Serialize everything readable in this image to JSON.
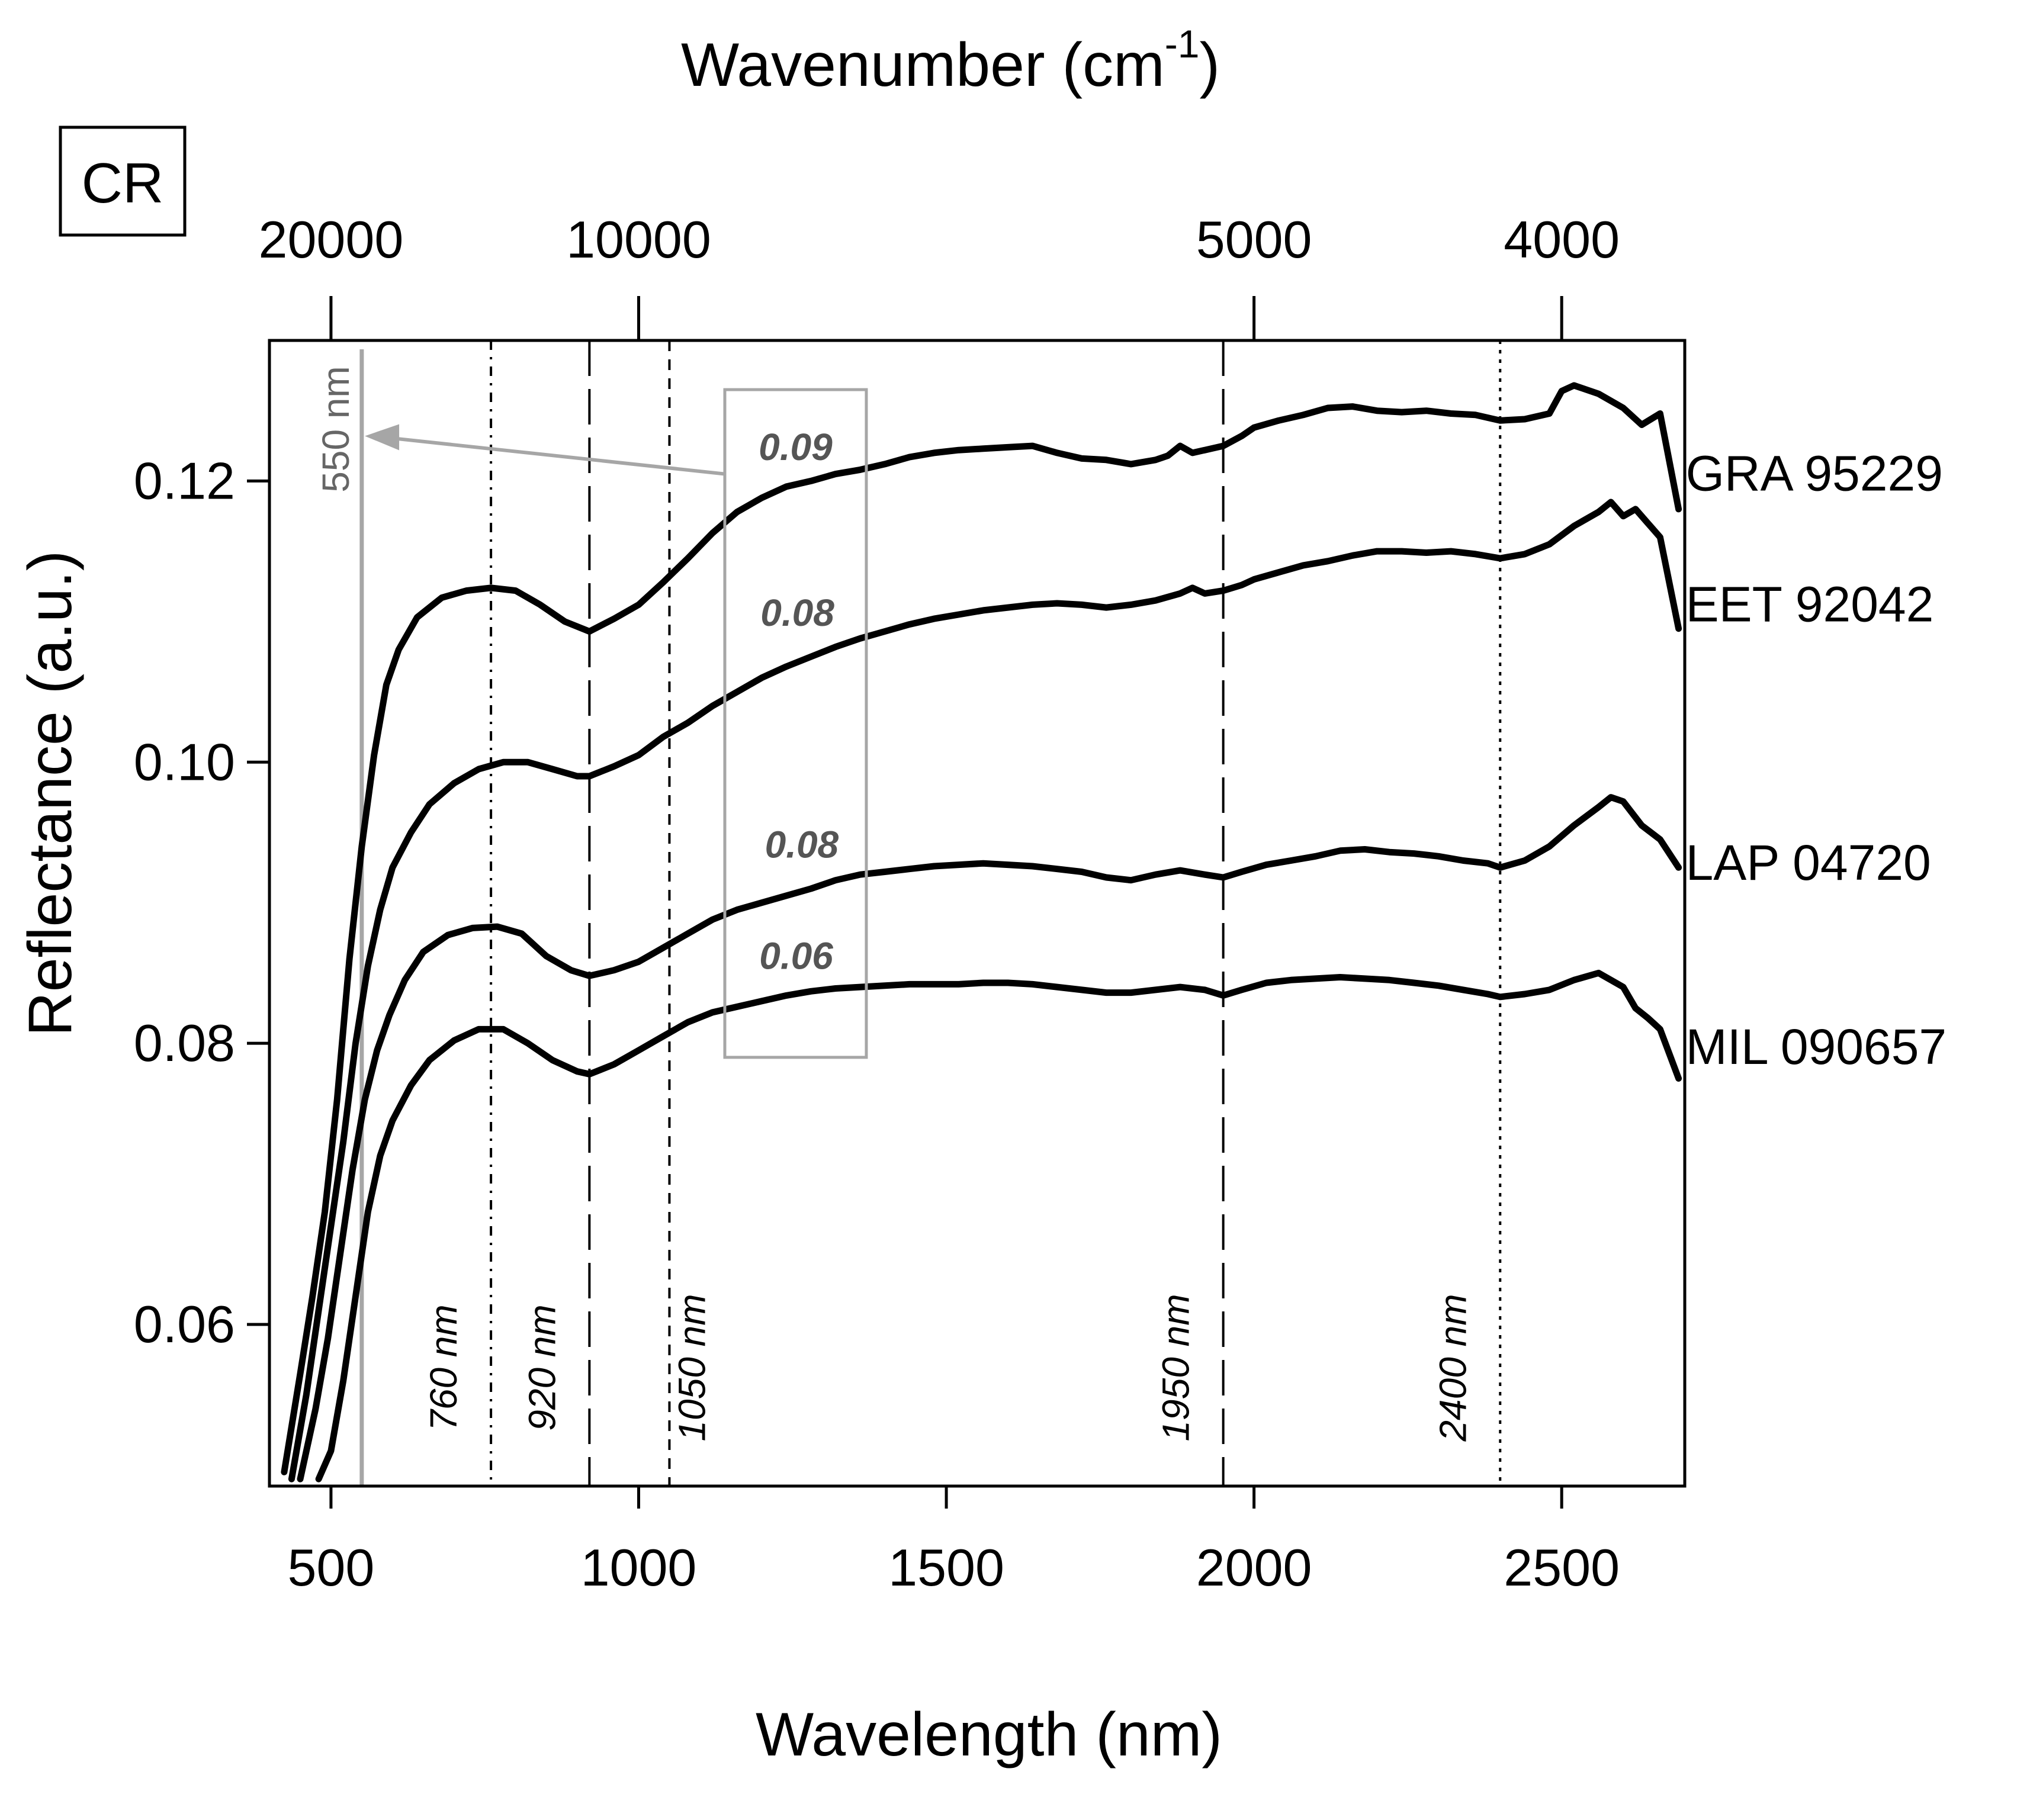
{
  "chart_data": {
    "type": "line",
    "panel_label": "CR",
    "xlabel": "Wavelength (nm)",
    "ylabel": "Reflectance (a.u.)",
    "top_axis_label": {
      "base": "Wavenumber (cm",
      "superscript": "-1",
      "close": ")"
    },
    "xlim": [
      400,
      2700
    ],
    "ylim": [
      0.0485,
      0.13
    ],
    "xticks": [
      500,
      1000,
      1500,
      2000,
      2500
    ],
    "xtick_labels": [
      "500",
      "1000",
      "1500",
      "2000",
      "2500"
    ],
    "yticks": [
      0.06,
      0.08,
      0.1,
      0.12
    ],
    "ytick_labels": [
      "0.06",
      "0.08",
      "0.10",
      "0.12"
    ],
    "top_ticks": [
      {
        "wavenumber": 20000,
        "label": "20000"
      },
      {
        "wavenumber": 10000,
        "label": "10000"
      },
      {
        "wavenumber": 5000,
        "label": "5000"
      },
      {
        "wavenumber": 4000,
        "label": "4000"
      }
    ],
    "marker_line": {
      "x": 550,
      "label": "550 nm",
      "color": "#a6a6a6"
    },
    "vlines": [
      {
        "x": 760,
        "label": "760 nm",
        "style": "dashdot"
      },
      {
        "x": 920,
        "label": "920 nm",
        "style": "longdash"
      },
      {
        "x": 1050,
        "label": "1050 nm",
        "style": "dashed"
      },
      {
        "x": 1950,
        "label": "1950 nm",
        "style": "longdash"
      },
      {
        "x": 2400,
        "label": "2400 nm",
        "style": "dotted"
      }
    ],
    "highlight_box": {
      "x_range": [
        1140,
        1370
      ],
      "y_range": [
        0.079,
        0.1265
      ],
      "color": "#a6a6a6"
    },
    "arrow": {
      "from": [
        1140,
        0.1205
      ],
      "to": [
        555,
        0.1232
      ]
    },
    "depth_labels": [
      {
        "series": "GRA 95229",
        "text": "0.09",
        "x": 1255,
        "y": 0.1215
      },
      {
        "series": "EET 92042",
        "text": "0.08",
        "x": 1258,
        "y": 0.1097
      },
      {
        "series": "LAP 04720",
        "text": "0.08",
        "x": 1265,
        "y": 0.0932
      },
      {
        "series": "MIL 090657",
        "text": "0.06",
        "x": 1256,
        "y": 0.0853
      }
    ],
    "series": [
      {
        "name": "GRA 95229",
        "x": [
          424,
          450,
          470,
          490,
          510,
          530,
          550,
          570,
          590,
          610,
          640,
          680,
          720,
          760,
          800,
          840,
          880,
          920,
          960,
          1000,
          1040,
          1080,
          1120,
          1160,
          1200,
          1240,
          1280,
          1320,
          1360,
          1400,
          1440,
          1480,
          1520,
          1560,
          1600,
          1640,
          1680,
          1720,
          1760,
          1800,
          1840,
          1860,
          1880,
          1900,
          1920,
          1950,
          1980,
          2000,
          2040,
          2080,
          2120,
          2160,
          2200,
          2240,
          2280,
          2320,
          2360,
          2400,
          2440,
          2480,
          2500,
          2520,
          2560,
          2600,
          2630,
          2660,
          2690
        ],
        "values": [
          0.0495,
          0.0565,
          0.062,
          0.068,
          0.076,
          0.086,
          0.094,
          0.1005,
          0.1055,
          0.108,
          0.1103,
          0.1117,
          0.1122,
          0.1124,
          0.1122,
          0.1112,
          0.11,
          0.1093,
          0.1102,
          0.1112,
          0.1128,
          0.1145,
          0.1163,
          0.1178,
          0.1188,
          0.1196,
          0.12,
          0.1205,
          0.1208,
          0.1212,
          0.1217,
          0.122,
          0.1222,
          0.1223,
          0.1224,
          0.1225,
          0.122,
          0.1216,
          0.1215,
          0.1212,
          0.1215,
          0.1218,
          0.1225,
          0.122,
          0.1222,
          0.1225,
          0.1232,
          0.1238,
          0.1243,
          0.1247,
          0.1252,
          0.1253,
          0.125,
          0.1249,
          0.125,
          0.1248,
          0.1247,
          0.1243,
          0.1244,
          0.1248,
          0.1264,
          0.1268,
          0.1262,
          0.1252,
          0.124,
          0.1248,
          0.118
        ]
      },
      {
        "name": "EET 92042",
        "x": [
          436,
          460,
          480,
          500,
          520,
          540,
          560,
          580,
          600,
          630,
          660,
          700,
          740,
          780,
          820,
          860,
          900,
          920,
          960,
          1000,
          1040,
          1080,
          1120,
          1160,
          1200,
          1240,
          1280,
          1320,
          1360,
          1400,
          1440,
          1480,
          1520,
          1560,
          1600,
          1640,
          1680,
          1720,
          1760,
          1800,
          1840,
          1880,
          1900,
          1920,
          1950,
          1980,
          2000,
          2040,
          2080,
          2120,
          2160,
          2200,
          2240,
          2280,
          2320,
          2360,
          2400,
          2440,
          2480,
          2520,
          2560,
          2580,
          2600,
          2620,
          2640,
          2660,
          2690
        ],
        "values": [
          0.049,
          0.055,
          0.061,
          0.067,
          0.073,
          0.08,
          0.0855,
          0.0895,
          0.0925,
          0.095,
          0.097,
          0.0985,
          0.0995,
          0.1,
          0.1,
          0.0995,
          0.099,
          0.099,
          0.0997,
          0.1005,
          0.1018,
          0.1028,
          0.104,
          0.105,
          0.106,
          0.1068,
          0.1075,
          0.1082,
          0.1088,
          0.1093,
          0.1098,
          0.1102,
          0.1105,
          0.1108,
          0.111,
          0.1112,
          0.1113,
          0.1112,
          0.111,
          0.1112,
          0.1115,
          0.112,
          0.1124,
          0.112,
          0.1122,
          0.1126,
          0.113,
          0.1135,
          0.114,
          0.1143,
          0.1147,
          0.115,
          0.115,
          0.1149,
          0.115,
          0.1148,
          0.1145,
          0.1148,
          0.1155,
          0.1168,
          0.1178,
          0.1185,
          0.1175,
          0.118,
          0.117,
          0.116,
          0.1095
        ]
      },
      {
        "name": "LAP 04720",
        "x": [
          450,
          475,
          495,
          515,
          535,
          555,
          575,
          595,
          620,
          650,
          690,
          730,
          770,
          810,
          850,
          890,
          920,
          960,
          1000,
          1040,
          1080,
          1120,
          1160,
          1200,
          1240,
          1280,
          1320,
          1360,
          1400,
          1440,
          1480,
          1520,
          1560,
          1600,
          1640,
          1680,
          1720,
          1760,
          1800,
          1840,
          1880,
          1920,
          1950,
          1980,
          2020,
          2060,
          2100,
          2140,
          2180,
          2220,
          2260,
          2300,
          2340,
          2380,
          2400,
          2440,
          2480,
          2520,
          2560,
          2580,
          2600,
          2630,
          2660,
          2690
        ],
        "values": [
          0.049,
          0.054,
          0.059,
          0.065,
          0.071,
          0.076,
          0.0795,
          0.082,
          0.0845,
          0.0865,
          0.0877,
          0.0882,
          0.0883,
          0.0878,
          0.0862,
          0.0852,
          0.0848,
          0.0852,
          0.0858,
          0.0868,
          0.0878,
          0.0888,
          0.0895,
          0.09,
          0.0905,
          0.091,
          0.0916,
          0.092,
          0.0922,
          0.0924,
          0.0926,
          0.0927,
          0.0928,
          0.0927,
          0.0926,
          0.0924,
          0.0922,
          0.0918,
          0.0916,
          0.092,
          0.0923,
          0.092,
          0.0918,
          0.0922,
          0.0927,
          0.093,
          0.0933,
          0.0937,
          0.0938,
          0.0936,
          0.0935,
          0.0933,
          0.093,
          0.0928,
          0.0925,
          0.093,
          0.094,
          0.0955,
          0.0968,
          0.0975,
          0.0972,
          0.0955,
          0.0945,
          0.0925
        ]
      },
      {
        "name": "MIL 090657",
        "x": [
          480,
          500,
          520,
          540,
          560,
          580,
          600,
          630,
          660,
          700,
          740,
          780,
          820,
          860,
          900,
          920,
          960,
          1000,
          1040,
          1080,
          1120,
          1160,
          1200,
          1240,
          1280,
          1320,
          1360,
          1400,
          1440,
          1480,
          1520,
          1560,
          1600,
          1640,
          1680,
          1720,
          1760,
          1800,
          1840,
          1880,
          1920,
          1950,
          1980,
          2020,
          2060,
          2100,
          2140,
          2180,
          2220,
          2260,
          2300,
          2340,
          2380,
          2400,
          2440,
          2480,
          2520,
          2560,
          2600,
          2620,
          2640,
          2660,
          2690
        ],
        "values": [
          0.049,
          0.051,
          0.056,
          0.062,
          0.068,
          0.072,
          0.0745,
          0.077,
          0.0788,
          0.0802,
          0.081,
          0.081,
          0.08,
          0.0788,
          0.078,
          0.0778,
          0.0785,
          0.0795,
          0.0805,
          0.0815,
          0.0822,
          0.0826,
          0.083,
          0.0834,
          0.0837,
          0.0839,
          0.084,
          0.0841,
          0.0842,
          0.0842,
          0.0842,
          0.0843,
          0.0843,
          0.0842,
          0.084,
          0.0838,
          0.0836,
          0.0836,
          0.0838,
          0.084,
          0.0838,
          0.0834,
          0.0838,
          0.0843,
          0.0845,
          0.0846,
          0.0847,
          0.0846,
          0.0845,
          0.0843,
          0.0841,
          0.0838,
          0.0835,
          0.0833,
          0.0835,
          0.0838,
          0.0845,
          0.085,
          0.084,
          0.0825,
          0.0818,
          0.081,
          0.0775
        ]
      }
    ]
  }
}
